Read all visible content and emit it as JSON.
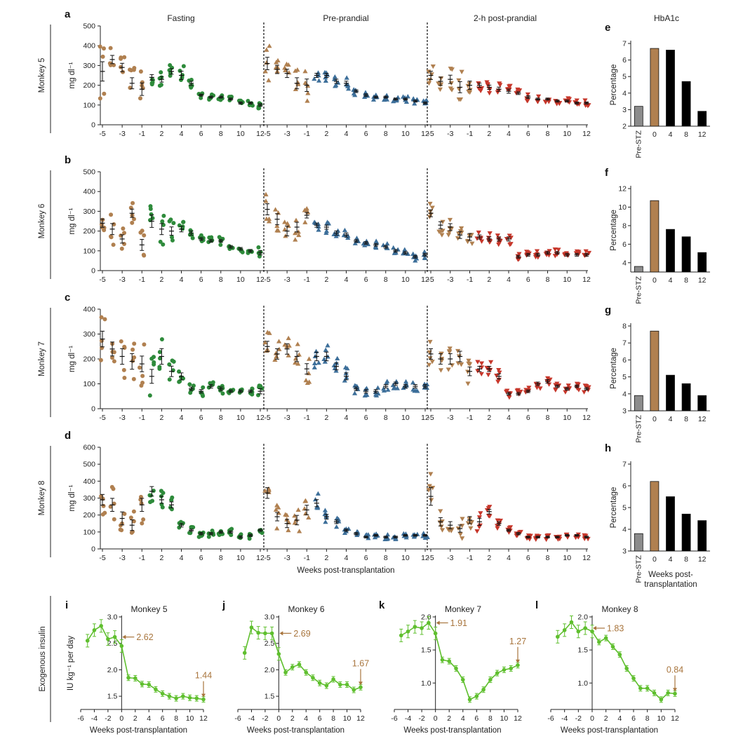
{
  "colors": {
    "pre": "#b08050",
    "fasting": "#2e8b3b",
    "preprandial": "#3d6f9a",
    "postprandial": "#c7372b",
    "insulin": "#5fbf2e",
    "annotation": "#a8753d",
    "gray_bar": "#8c8c8c",
    "black_bar": "#000000"
  },
  "chart_data": [
    {
      "type": "scatter",
      "panel_label": "a",
      "row_label": "Monkey 5",
      "ylabel": "mg dl⁻¹",
      "xlabel": "",
      "ylim": [
        0,
        500
      ],
      "yticks": [
        0,
        100,
        200,
        300,
        400,
        500
      ],
      "xticks": [
        -5,
        -3,
        -1,
        2,
        4,
        6,
        8,
        10,
        12
      ],
      "weeks": [
        -5,
        -4,
        -3,
        -2,
        -1,
        1,
        2,
        3,
        4,
        5,
        6,
        7,
        8,
        9,
        10,
        11,
        12
      ],
      "groups": [
        {
          "name": "Fasting",
          "means": [
            270,
            330,
            290,
            210,
            180,
            240,
            230,
            270,
            250,
            210,
            150,
            140,
            140,
            130,
            110,
            110,
            100
          ],
          "spread": [
            140,
            60,
            60,
            80,
            90,
            40,
            40,
            40,
            60,
            30,
            15,
            15,
            15,
            15,
            15,
            15,
            20
          ]
        },
        {
          "name": "Pre-prandial",
          "means": [
            310,
            280,
            260,
            210,
            200,
            250,
            250,
            220,
            210,
            170,
            150,
            140,
            140,
            130,
            130,
            120,
            110
          ],
          "spread": [
            90,
            60,
            60,
            80,
            90,
            30,
            30,
            30,
            30,
            20,
            20,
            15,
            15,
            15,
            15,
            15,
            15
          ]
        },
        {
          "name": "2-h post-prandial",
          "means": [
            250,
            220,
            230,
            190,
            200,
            200,
            190,
            180,
            170,
            160,
            140,
            130,
            130,
            120,
            120,
            110,
            110
          ],
          "spread": [
            60,
            60,
            60,
            80,
            60,
            30,
            30,
            30,
            30,
            20,
            20,
            15,
            15,
            15,
            15,
            15,
            15
          ]
        }
      ]
    },
    {
      "type": "scatter",
      "panel_label": "b",
      "row_label": "Monkey 6",
      "ylabel": "mg dl⁻¹",
      "xlabel": "",
      "ylim": [
        0,
        500
      ],
      "yticks": [
        0,
        100,
        200,
        300,
        400,
        500
      ],
      "xticks": [
        -5,
        -3,
        -1,
        2,
        4,
        6,
        8,
        10,
        12
      ],
      "weeks": [
        -5,
        -4,
        -3,
        -2,
        -1,
        1,
        2,
        3,
        4,
        5,
        6,
        7,
        8,
        9,
        10,
        11,
        12
      ],
      "groups": [
        {
          "name": "Fasting",
          "means": [
            240,
            210,
            160,
            290,
            130,
            250,
            210,
            200,
            210,
            190,
            160,
            150,
            150,
            120,
            110,
            100,
            90
          ],
          "spread": [
            60,
            80,
            60,
            60,
            80,
            90,
            80,
            60,
            40,
            30,
            20,
            20,
            20,
            20,
            20,
            20,
            30
          ]
        },
        {
          "name": "Pre-prandial",
          "means": [
            310,
            260,
            200,
            220,
            280,
            230,
            220,
            190,
            180,
            150,
            140,
            130,
            120,
            100,
            90,
            70,
            80
          ],
          "spread": [
            80,
            80,
            70,
            70,
            40,
            30,
            30,
            30,
            30,
            20,
            20,
            20,
            20,
            20,
            20,
            20,
            20
          ]
        },
        {
          "name": "2-h post-prandial",
          "means": [
            290,
            230,
            220,
            180,
            170,
            170,
            160,
            160,
            160,
            70,
            80,
            80,
            90,
            90,
            80,
            80,
            80
          ],
          "spread": [
            50,
            50,
            50,
            50,
            50,
            30,
            30,
            30,
            30,
            20,
            20,
            20,
            20,
            20,
            20,
            20,
            20
          ]
        }
      ]
    },
    {
      "type": "scatter",
      "panel_label": "c",
      "row_label": "Monkey 7",
      "ylabel": "mg dl⁻¹",
      "xlabel": "",
      "ylim": [
        0,
        400
      ],
      "yticks": [
        0,
        100,
        200,
        300,
        400
      ],
      "xticks": [
        -5,
        -3,
        -1,
        2,
        4,
        6,
        8,
        10,
        12
      ],
      "weeks": [
        -5,
        -4,
        -3,
        -2,
        -1,
        1,
        2,
        3,
        4,
        5,
        6,
        7,
        8,
        9,
        10,
        11,
        12
      ],
      "groups": [
        {
          "name": "Fasting",
          "means": [
            280,
            240,
            210,
            190,
            180,
            130,
            210,
            150,
            130,
            80,
            70,
            90,
            80,
            70,
            70,
            70,
            70
          ],
          "spread": [
            90,
            80,
            90,
            90,
            90,
            80,
            90,
            60,
            40,
            20,
            20,
            20,
            20,
            15,
            15,
            15,
            30
          ]
        },
        {
          "name": "Pre-prandial",
          "means": [
            250,
            220,
            240,
            210,
            160,
            210,
            210,
            170,
            130,
            80,
            70,
            70,
            90,
            100,
            90,
            90,
            90
          ],
          "spread": [
            60,
            60,
            60,
            60,
            60,
            50,
            50,
            40,
            40,
            20,
            20,
            20,
            20,
            20,
            20,
            20,
            20
          ]
        },
        {
          "name": "2-h post-prandial",
          "means": [
            220,
            200,
            200,
            210,
            150,
            160,
            160,
            130,
            60,
            60,
            70,
            100,
            110,
            90,
            80,
            90,
            80
          ],
          "spread": [
            60,
            60,
            60,
            60,
            50,
            30,
            30,
            30,
            15,
            15,
            15,
            20,
            20,
            15,
            15,
            15,
            15
          ]
        }
      ]
    },
    {
      "type": "scatter",
      "panel_label": "d",
      "row_label": "Monkey 8",
      "ylabel": "mg dl⁻¹",
      "xlabel": "Weeks post-transplantation",
      "ylim": [
        0,
        600
      ],
      "yticks": [
        0,
        100,
        200,
        300,
        400,
        500,
        600
      ],
      "xticks": [
        -5,
        -3,
        -1,
        2,
        4,
        6,
        8,
        10,
        12
      ],
      "weeks": [
        -5,
        -4,
        -3,
        -2,
        -1,
        1,
        2,
        3,
        4,
        5,
        6,
        7,
        8,
        9,
        10,
        11,
        12
      ],
      "groups": [
        {
          "name": "Fasting",
          "means": [
            290,
            260,
            180,
            140,
            260,
            340,
            290,
            260,
            140,
            110,
            90,
            90,
            100,
            100,
            70,
            80,
            110
          ],
          "spread": [
            90,
            110,
            110,
            90,
            110,
            80,
            60,
            50,
            30,
            20,
            20,
            20,
            20,
            20,
            20,
            20,
            20
          ]
        },
        {
          "name": "Pre-prandial",
          "means": [
            330,
            190,
            150,
            170,
            230,
            270,
            190,
            160,
            110,
            90,
            70,
            80,
            70,
            70,
            80,
            80,
            80
          ],
          "spread": [
            90,
            70,
            70,
            80,
            80,
            60,
            40,
            30,
            20,
            20,
            15,
            15,
            15,
            15,
            15,
            15,
            15
          ]
        },
        {
          "name": "2-h post-prandial",
          "means": [
            310,
            160,
            140,
            120,
            170,
            160,
            220,
            150,
            110,
            90,
            70,
            70,
            70,
            70,
            80,
            80,
            70
          ],
          "spread": [
            150,
            70,
            60,
            60,
            60,
            60,
            40,
            30,
            20,
            20,
            15,
            15,
            15,
            15,
            15,
            15,
            15
          ]
        }
      ]
    },
    {
      "type": "bar",
      "panel_label": "e",
      "title": "HbA1c",
      "ylabel": "Percentage",
      "categories": [
        "Pre-STZ",
        "0",
        "4",
        "8",
        "12"
      ],
      "values": [
        3.2,
        6.7,
        6.6,
        4.7,
        2.9
      ],
      "ylim": [
        2,
        7
      ],
      "yticks": [
        2,
        3,
        4,
        5,
        6,
        7
      ]
    },
    {
      "type": "bar",
      "panel_label": "f",
      "ylabel": "Percentage",
      "categories": [
        "Pre-STZ",
        "0",
        "4",
        "8",
        "12"
      ],
      "values": [
        3.6,
        10.7,
        7.6,
        6.8,
        5.1
      ],
      "ylim": [
        3,
        12
      ],
      "yticks": [
        4,
        6,
        8,
        10,
        12
      ]
    },
    {
      "type": "bar",
      "panel_label": "g",
      "ylabel": "Percentage",
      "categories": [
        "Pre-STZ",
        "0",
        "4",
        "8",
        "12"
      ],
      "values": [
        3.9,
        7.7,
        5.1,
        4.6,
        3.9
      ],
      "ylim": [
        3,
        8
      ],
      "yticks": [
        3,
        4,
        5,
        6,
        7,
        8
      ]
    },
    {
      "type": "bar",
      "panel_label": "h",
      "ylabel": "Percentage",
      "xlabel": "Weeks post-\ntransplantation",
      "categories": [
        "Pre-STZ",
        "0",
        "4",
        "8",
        "12"
      ],
      "values": [
        3.8,
        6.2,
        5.5,
        4.7,
        4.4
      ],
      "ylim": [
        3,
        7
      ],
      "yticks": [
        3,
        4,
        5,
        6,
        7
      ]
    },
    {
      "type": "line",
      "panel_label": "i",
      "title": "Monkey 5",
      "ylabel": "IU kg⁻¹ per day",
      "xlabel": "Weeks post-transplantation",
      "x": [
        -5,
        -4,
        -3,
        -2,
        -1,
        0,
        1,
        2,
        3,
        4,
        5,
        6,
        7,
        8,
        9,
        10,
        11,
        12
      ],
      "y": [
        2.55,
        2.75,
        2.83,
        2.58,
        2.62,
        2.45,
        1.85,
        1.84,
        1.73,
        1.72,
        1.63,
        1.55,
        1.5,
        1.46,
        1.5,
        1.47,
        1.46,
        1.44
      ],
      "xlim": [
        -6,
        12
      ],
      "ylim": [
        1.25,
        3.0
      ],
      "xticks": [
        -6,
        -4,
        -2,
        0,
        2,
        4,
        6,
        8,
        10,
        12
      ],
      "yticks": [
        1.5,
        2.0,
        2.5,
        3.0
      ],
      "annotations": [
        "2.62",
        "1.44"
      ]
    },
    {
      "type": "line",
      "panel_label": "j",
      "title": "Monkey 6",
      "ylabel": "",
      "xlabel": "Weeks post-transplantation",
      "x": [
        -5,
        -4,
        -3,
        -2,
        -1,
        0,
        1,
        2,
        3,
        4,
        5,
        6,
        7,
        8,
        9,
        10,
        11,
        12
      ],
      "y": [
        2.32,
        2.8,
        2.7,
        2.69,
        2.69,
        2.3,
        1.95,
        2.05,
        2.1,
        1.95,
        1.85,
        1.75,
        1.7,
        1.82,
        1.72,
        1.72,
        1.62,
        1.67
      ],
      "xlim": [
        -6,
        12
      ],
      "ylim": [
        1.25,
        3.0
      ],
      "xticks": [
        -6,
        -4,
        -2,
        0,
        2,
        4,
        6,
        8,
        10,
        12
      ],
      "yticks": [
        1.5,
        2.0,
        2.5,
        3.0
      ],
      "annotations": [
        "2.69",
        "1.67"
      ]
    },
    {
      "type": "line",
      "panel_label": "k",
      "title": "Monkey 7",
      "ylabel": "",
      "xlabel": "Weeks post-transplantation",
      "x": [
        -5,
        -4,
        -3,
        -2,
        -1,
        0,
        1,
        2,
        3,
        4,
        5,
        6,
        7,
        8,
        9,
        10,
        11,
        12
      ],
      "y": [
        1.72,
        1.78,
        1.85,
        1.83,
        1.91,
        1.75,
        1.35,
        1.33,
        1.22,
        1.05,
        0.75,
        0.8,
        0.9,
        1.05,
        1.15,
        1.2,
        1.22,
        1.27
      ],
      "xlim": [
        -6,
        12
      ],
      "ylim": [
        0.6,
        2.0
      ],
      "xticks": [
        -6,
        -4,
        -2,
        0,
        2,
        4,
        6,
        8,
        10,
        12
      ],
      "yticks": [
        1.0,
        1.5,
        2.0
      ],
      "annotations": [
        "1.91",
        "1.27"
      ]
    },
    {
      "type": "line",
      "panel_label": "l",
      "title": "Monkey 8",
      "ylabel": "",
      "xlabel": "Weeks post-transplantation",
      "x": [
        -5,
        -4,
        -3,
        -2,
        -1,
        0,
        1,
        2,
        3,
        4,
        5,
        6,
        7,
        8,
        9,
        10,
        11,
        12
      ],
      "y": [
        1.7,
        1.8,
        1.92,
        1.78,
        1.83,
        1.78,
        1.62,
        1.68,
        1.55,
        1.43,
        1.22,
        1.07,
        0.92,
        0.92,
        0.85,
        0.75,
        0.85,
        0.84
      ],
      "xlim": [
        -6,
        12
      ],
      "ylim": [
        0.6,
        2.0
      ],
      "xticks": [
        -6,
        -4,
        -2,
        0,
        2,
        4,
        6,
        8,
        10,
        12
      ],
      "yticks": [
        1.0,
        1.5,
        2.0
      ],
      "annotations": [
        "1.83",
        "0.84"
      ]
    }
  ],
  "labels": {
    "fasting": "Fasting",
    "preprandial": "Pre-prandial",
    "postprandial": "2-h post-prandial",
    "insulin_row": "Exogenous insulin"
  }
}
